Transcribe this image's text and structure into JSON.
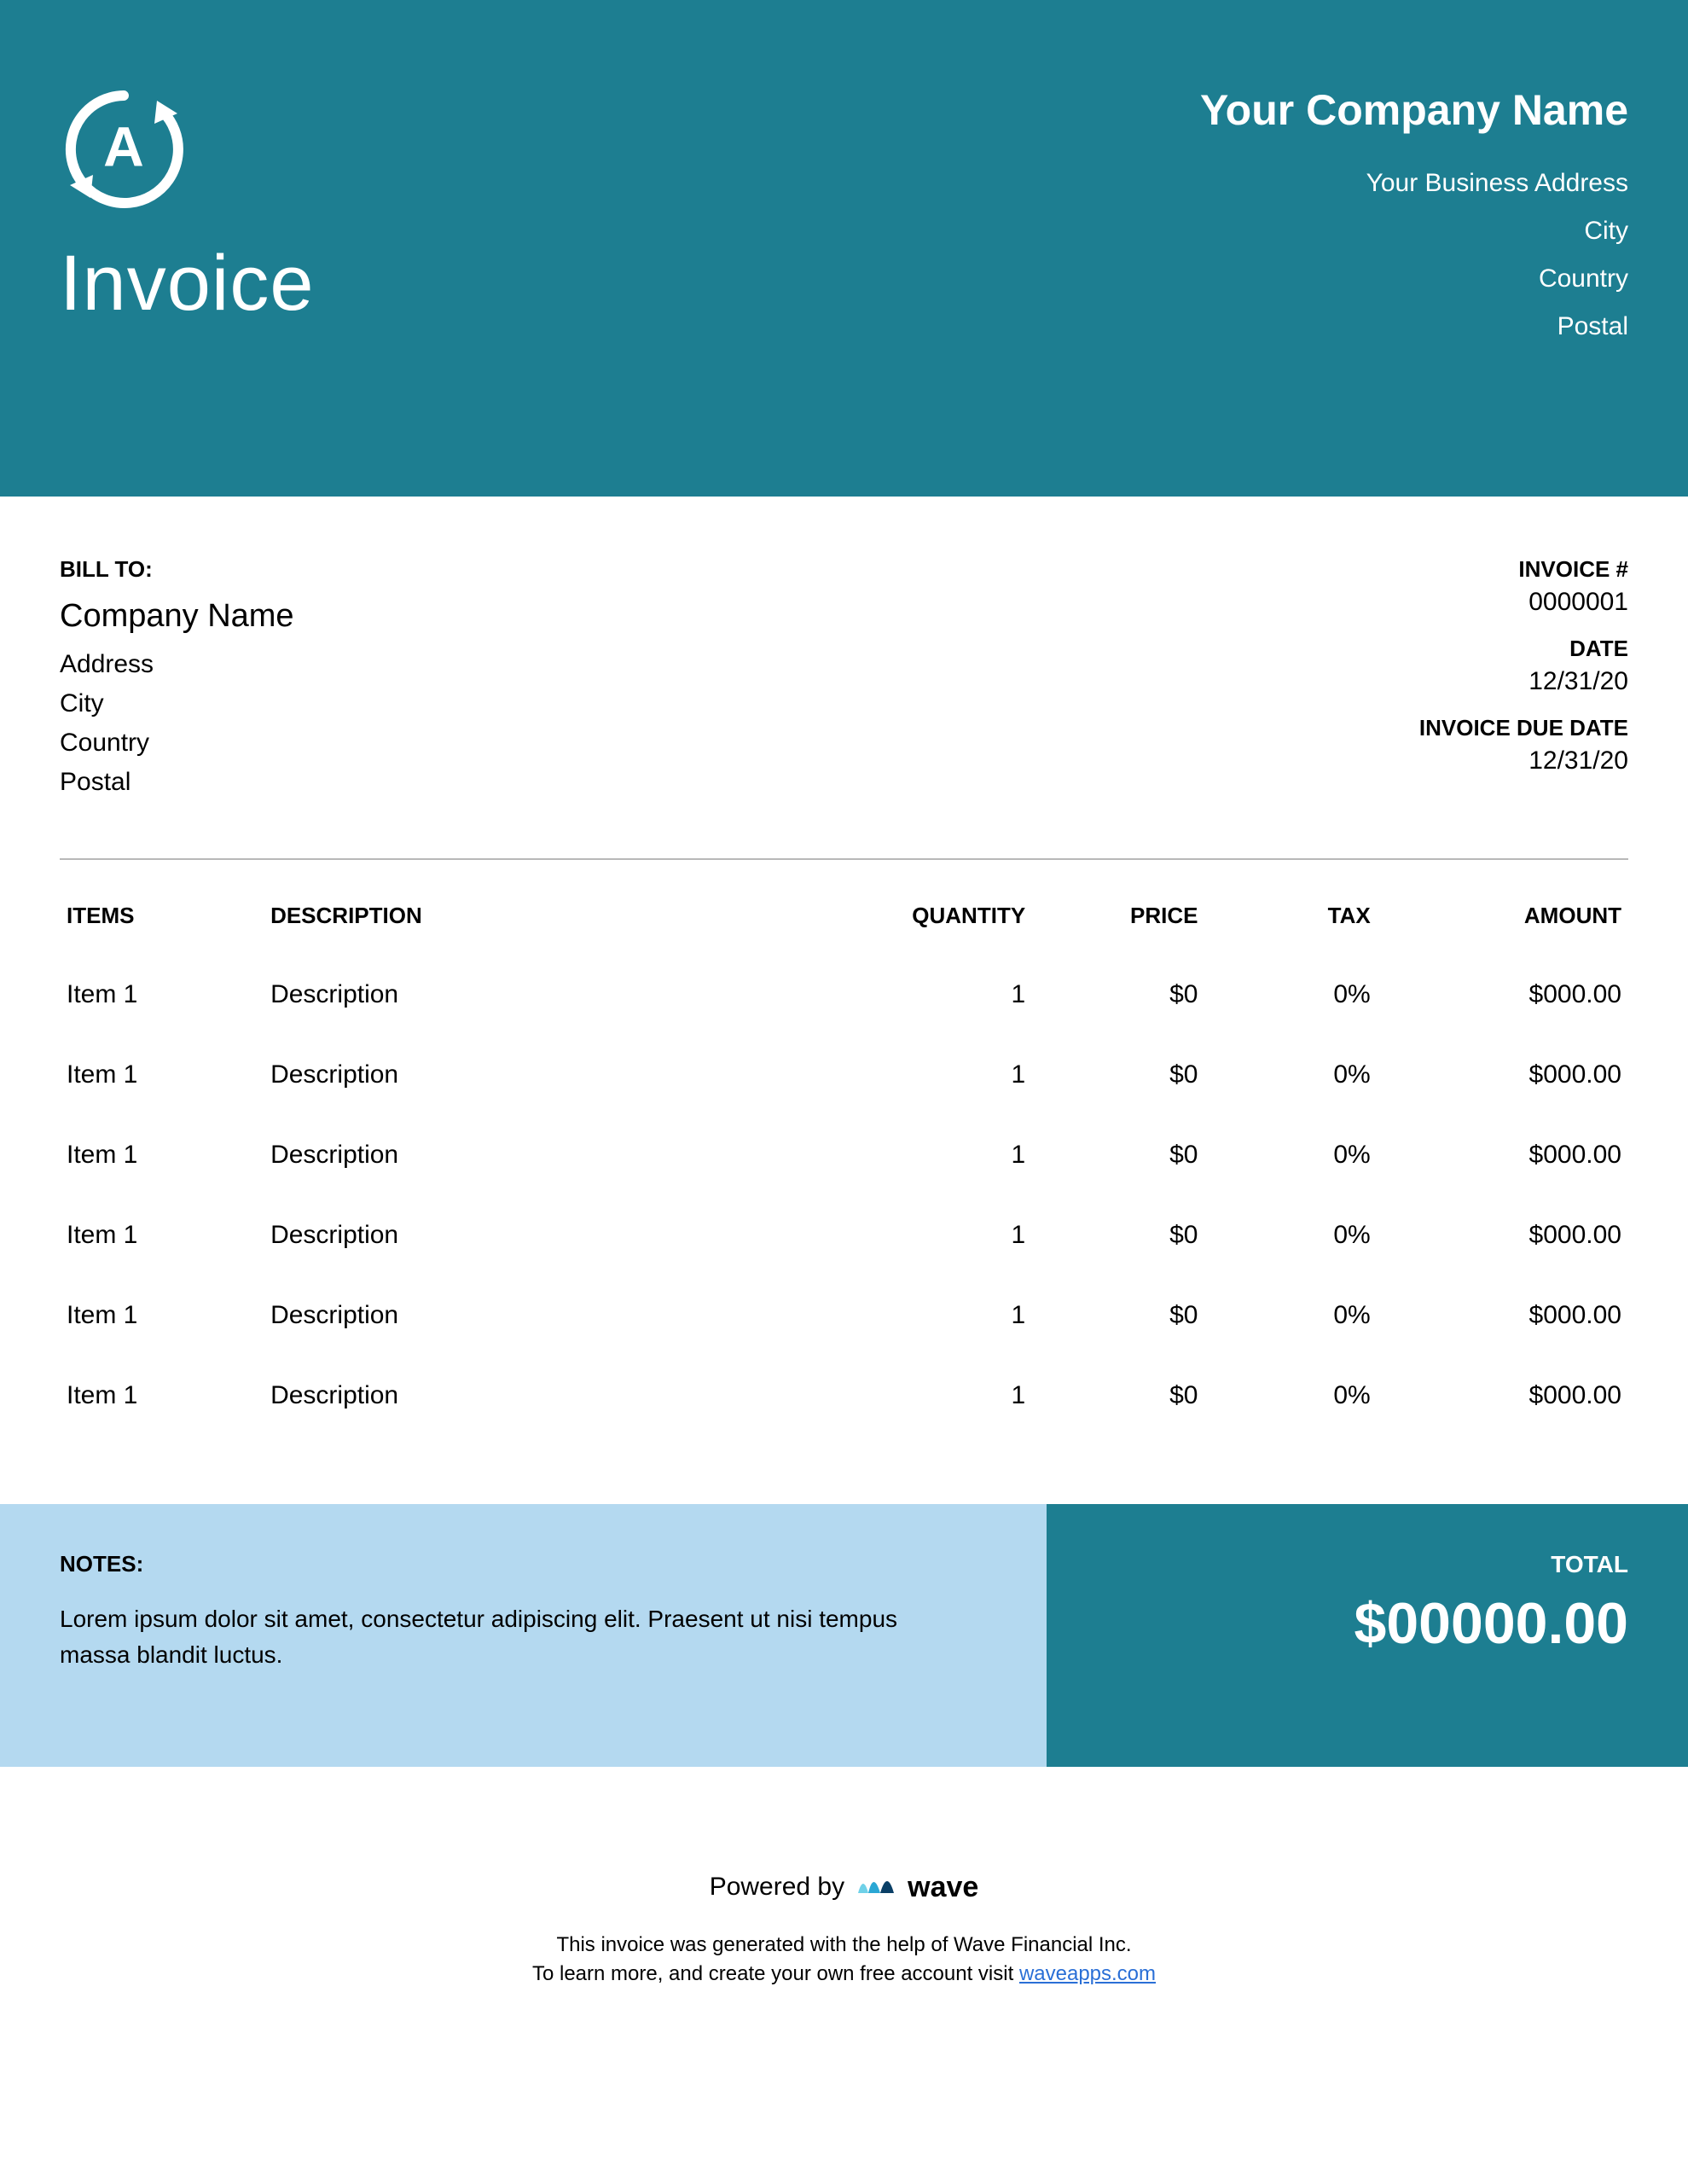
{
  "colors": {
    "header_bg": "#1d7e91",
    "header_fg": "#ffffff",
    "notes_bg": "#b4d9f0",
    "total_bg": "#1d7e91",
    "divider": "#b8b8b8",
    "link": "#2a6fd6",
    "wave_mark_light": "#6fd1e8",
    "wave_mark_dark": "#0a3f66"
  },
  "header": {
    "doc_title": "Invoice",
    "company_name": "Your Company Name",
    "address_lines": [
      "Your Business Address",
      "City",
      "Country",
      "Postal"
    ]
  },
  "bill_to": {
    "label": "BILL TO:",
    "company": "Company Name",
    "lines": [
      "Address",
      "City",
      "Country",
      "Postal"
    ]
  },
  "invoice_meta": {
    "number_label": "INVOICE #",
    "number": "0000001",
    "date_label": "DATE",
    "date": "12/31/20",
    "due_label": "INVOICE DUE DATE",
    "due": "12/31/20"
  },
  "table": {
    "columns": [
      "ITEMS",
      "DESCRIPTION",
      "QUANTITY",
      "PRICE",
      "TAX",
      "AMOUNT"
    ],
    "rows": [
      {
        "item": "Item 1",
        "description": "Description",
        "quantity": "1",
        "price": "$0",
        "tax": "0%",
        "amount": "$000.00"
      },
      {
        "item": "Item 1",
        "description": "Description",
        "quantity": "1",
        "price": "$0",
        "tax": "0%",
        "amount": "$000.00"
      },
      {
        "item": "Item 1",
        "description": "Description",
        "quantity": "1",
        "price": "$0",
        "tax": "0%",
        "amount": "$000.00"
      },
      {
        "item": "Item 1",
        "description": "Description",
        "quantity": "1",
        "price": "$0",
        "tax": "0%",
        "amount": "$000.00"
      },
      {
        "item": "Item 1",
        "description": "Description",
        "quantity": "1",
        "price": "$0",
        "tax": "0%",
        "amount": "$000.00"
      },
      {
        "item": "Item 1",
        "description": "Description",
        "quantity": "1",
        "price": "$0",
        "tax": "0%",
        "amount": "$000.00"
      }
    ]
  },
  "notes": {
    "label": "NOTES:",
    "text": "Lorem ipsum dolor sit amet, consectetur adipiscing elit. Praesent ut nisi tempus massa blandit luctus."
  },
  "total": {
    "label": "TOTAL",
    "value": "$00000.00"
  },
  "powered": {
    "prefix": "Powered by",
    "brand": "wave",
    "line1": "This invoice was generated with the help of Wave Financial Inc.",
    "line2_prefix": "To learn more, and create your own free account visit ",
    "link_text": "waveapps.com"
  }
}
